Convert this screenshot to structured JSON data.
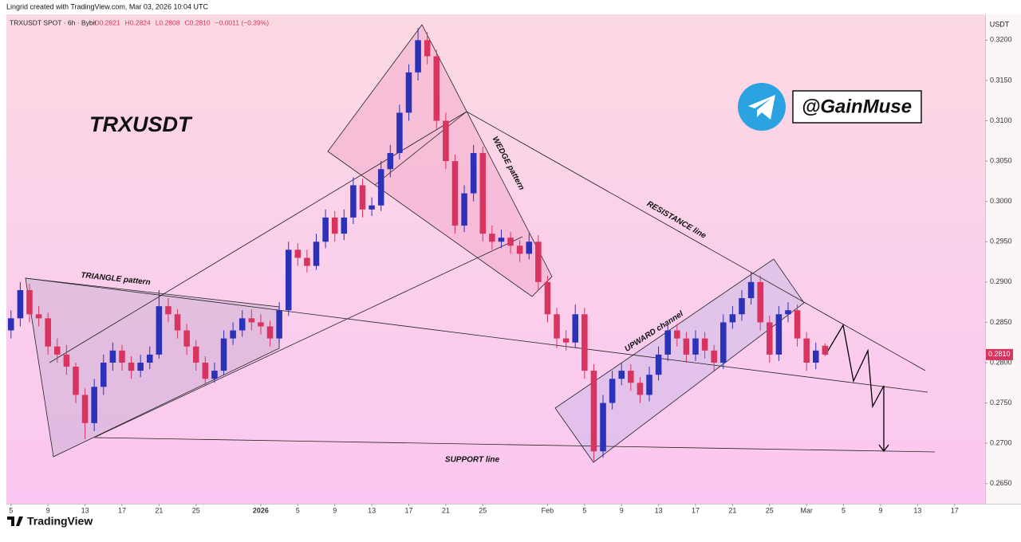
{
  "header": {
    "credit": "Lingrid created with TradingView.com, Mar 03, 2026 10:04 UTC",
    "footer_logo": "TradingView"
  },
  "chart_data": {
    "type": "candlestick",
    "title": "TRXUSDT",
    "symbol_info": "TRXUSDT SPOT · 6h · Bybit",
    "ohlc_text": [
      "O0.2821",
      "H0.2824",
      "L0.2808",
      "C0.2810",
      "−0.0011 (−0.39%)"
    ],
    "currency": "USDT",
    "handle": "@GainMuse",
    "annotations": [
      "TRIANGLE pattern",
      "WEDGE pattern",
      "RESISTANCE line",
      "UPWARD channel",
      "SUPPORT line"
    ],
    "up_color": "#2b32b8",
    "down_color": "#d8345f",
    "last_price": {
      "value": 0.281,
      "label": "0.2810"
    },
    "xlim": [
      -0.5,
      105.3
    ],
    "ylim": [
      0.2625,
      0.3232
    ],
    "yticks": [
      {
        "value": 0.265,
        "label": "0.2650"
      },
      {
        "value": 0.27,
        "label": "0.2700"
      },
      {
        "value": 0.275,
        "label": "0.2750"
      },
      {
        "value": 0.28,
        "label": "0.2800"
      },
      {
        "value": 0.285,
        "label": "0.2850"
      },
      {
        "value": 0.29,
        "label": "0.2900"
      },
      {
        "value": 0.295,
        "label": "0.2950"
      },
      {
        "value": 0.3,
        "label": "0.3000"
      },
      {
        "value": 0.305,
        "label": "0.3050"
      },
      {
        "value": 0.31,
        "label": "0.3100"
      },
      {
        "value": 0.315,
        "label": "0.3150"
      },
      {
        "value": 0.32,
        "label": "0.3200"
      }
    ],
    "xticks": [
      {
        "value": 0,
        "label": "5"
      },
      {
        "value": 4,
        "label": "9"
      },
      {
        "value": 8,
        "label": "13"
      },
      {
        "value": 12,
        "label": "17"
      },
      {
        "value": 16,
        "label": "21"
      },
      {
        "value": 20,
        "label": "25"
      },
      {
        "value": 27,
        "label": "2026"
      },
      {
        "value": 31,
        "label": "5"
      },
      {
        "value": 35,
        "label": "9"
      },
      {
        "value": 39,
        "label": "13"
      },
      {
        "value": 43,
        "label": "17"
      },
      {
        "value": 47,
        "label": "21"
      },
      {
        "value": 51,
        "label": "25"
      },
      {
        "value": 58,
        "label": "Feb"
      },
      {
        "value": 62,
        "label": "5"
      },
      {
        "value": 66,
        "label": "9"
      },
      {
        "value": 70,
        "label": "13"
      },
      {
        "value": 74,
        "label": "17"
      },
      {
        "value": 78,
        "label": "21"
      },
      {
        "value": 82,
        "label": "25"
      },
      {
        "value": 86,
        "label": "Mar"
      },
      {
        "value": 90,
        "label": "5"
      },
      {
        "value": 94,
        "label": "9"
      },
      {
        "value": 98,
        "label": "13"
      },
      {
        "value": 102,
        "label": "17"
      }
    ],
    "x": [
      0,
      1,
      2,
      3,
      4,
      5,
      6,
      7,
      8,
      9,
      10,
      11,
      12,
      13,
      14,
      15,
      16,
      17,
      18,
      19,
      20,
      21,
      22,
      23,
      24,
      25,
      26,
      27,
      28,
      29,
      30,
      31,
      32,
      33,
      34,
      35,
      36,
      37,
      38,
      39,
      40,
      41,
      42,
      43,
      44,
      45,
      46,
      47,
      48,
      49,
      50,
      51,
      52,
      53,
      54,
      55,
      56,
      57,
      58,
      59,
      60,
      61,
      62,
      63,
      64,
      65,
      66,
      67,
      68,
      69,
      70,
      71,
      72,
      73,
      74,
      75,
      76,
      77,
      78,
      79,
      80,
      81,
      82,
      83,
      84,
      85,
      86,
      87,
      88
    ],
    "candles": [
      [
        0.284,
        0.2865,
        0.283,
        0.2855
      ],
      [
        0.2855,
        0.29,
        0.2845,
        0.289
      ],
      [
        0.289,
        0.2898,
        0.285,
        0.286
      ],
      [
        0.286,
        0.287,
        0.2845,
        0.2855
      ],
      [
        0.2855,
        0.2862,
        0.281,
        0.282
      ],
      [
        0.282,
        0.283,
        0.28,
        0.281
      ],
      [
        0.281,
        0.2822,
        0.2785,
        0.2795
      ],
      [
        0.2795,
        0.28,
        0.275,
        0.276
      ],
      [
        0.276,
        0.2768,
        0.2705,
        0.2725
      ],
      [
        0.2725,
        0.278,
        0.2715,
        0.277
      ],
      [
        0.277,
        0.281,
        0.276,
        0.28
      ],
      [
        0.28,
        0.2825,
        0.279,
        0.2815
      ],
      [
        0.2815,
        0.2822,
        0.279,
        0.28
      ],
      [
        0.28,
        0.2808,
        0.278,
        0.279
      ],
      [
        0.279,
        0.281,
        0.2782,
        0.28
      ],
      [
        0.28,
        0.282,
        0.2792,
        0.281
      ],
      [
        0.281,
        0.289,
        0.2805,
        0.287
      ],
      [
        0.287,
        0.288,
        0.285,
        0.286
      ],
      [
        0.286,
        0.2866,
        0.283,
        0.284
      ],
      [
        0.284,
        0.2848,
        0.281,
        0.282
      ],
      [
        0.282,
        0.2828,
        0.279,
        0.28
      ],
      [
        0.28,
        0.2808,
        0.2772,
        0.278
      ],
      [
        0.278,
        0.28,
        0.2775,
        0.279
      ],
      [
        0.279,
        0.284,
        0.2785,
        0.283
      ],
      [
        0.283,
        0.285,
        0.2822,
        0.284
      ],
      [
        0.284,
        0.2865,
        0.2832,
        0.2855
      ],
      [
        0.2855,
        0.2866,
        0.284,
        0.285
      ],
      [
        0.285,
        0.286,
        0.2835,
        0.2845
      ],
      [
        0.2845,
        0.2852,
        0.282,
        0.283
      ],
      [
        0.283,
        0.2875,
        0.2825,
        0.2865
      ],
      [
        0.2865,
        0.295,
        0.2858,
        0.294
      ],
      [
        0.294,
        0.2948,
        0.292,
        0.293
      ],
      [
        0.293,
        0.294,
        0.2912,
        0.292
      ],
      [
        0.292,
        0.296,
        0.2915,
        0.295
      ],
      [
        0.295,
        0.299,
        0.2942,
        0.298
      ],
      [
        0.298,
        0.2988,
        0.295,
        0.296
      ],
      [
        0.296,
        0.299,
        0.2952,
        0.298
      ],
      [
        0.298,
        0.303,
        0.2972,
        0.302
      ],
      [
        0.302,
        0.3028,
        0.298,
        0.299
      ],
      [
        0.299,
        0.3005,
        0.2982,
        0.2995
      ],
      [
        0.2995,
        0.305,
        0.2988,
        0.304
      ],
      [
        0.304,
        0.307,
        0.303,
        0.306
      ],
      [
        0.306,
        0.312,
        0.3052,
        0.311
      ],
      [
        0.311,
        0.317,
        0.31,
        0.316
      ],
      [
        0.316,
        0.3215,
        0.315,
        0.32
      ],
      [
        0.32,
        0.321,
        0.317,
        0.318
      ],
      [
        0.318,
        0.3188,
        0.309,
        0.31
      ],
      [
        0.31,
        0.311,
        0.304,
        0.305
      ],
      [
        0.305,
        0.3058,
        0.296,
        0.297
      ],
      [
        0.297,
        0.302,
        0.2962,
        0.301
      ],
      [
        0.301,
        0.307,
        0.3,
        0.306
      ],
      [
        0.306,
        0.3068,
        0.295,
        0.296
      ],
      [
        0.296,
        0.297,
        0.294,
        0.295
      ],
      [
        0.295,
        0.2965,
        0.2942,
        0.2955
      ],
      [
        0.2955,
        0.2962,
        0.2935,
        0.2945
      ],
      [
        0.2945,
        0.2952,
        0.2925,
        0.2935
      ],
      [
        0.2935,
        0.296,
        0.2928,
        0.295
      ],
      [
        0.295,
        0.2958,
        0.289,
        0.29
      ],
      [
        0.29,
        0.2908,
        0.285,
        0.286
      ],
      [
        0.286,
        0.2868,
        0.2818,
        0.283
      ],
      [
        0.283,
        0.284,
        0.2815,
        0.2825
      ],
      [
        0.2825,
        0.2872,
        0.2818,
        0.286
      ],
      [
        0.286,
        0.2868,
        0.278,
        0.279
      ],
      [
        0.279,
        0.2798,
        0.2678,
        0.269
      ],
      [
        0.269,
        0.276,
        0.2682,
        0.275
      ],
      [
        0.275,
        0.279,
        0.2742,
        0.278
      ],
      [
        0.278,
        0.28,
        0.2772,
        0.279
      ],
      [
        0.279,
        0.2798,
        0.2765,
        0.2775
      ],
      [
        0.2775,
        0.2782,
        0.275,
        0.276
      ],
      [
        0.276,
        0.2795,
        0.2752,
        0.2785
      ],
      [
        0.2785,
        0.282,
        0.2778,
        0.281
      ],
      [
        0.281,
        0.285,
        0.2802,
        0.284
      ],
      [
        0.284,
        0.2848,
        0.282,
        0.283
      ],
      [
        0.283,
        0.2838,
        0.28,
        0.281
      ],
      [
        0.281,
        0.284,
        0.2802,
        0.283
      ],
      [
        0.283,
        0.2838,
        0.2805,
        0.2815
      ],
      [
        0.2815,
        0.2822,
        0.279,
        0.28
      ],
      [
        0.28,
        0.286,
        0.2792,
        0.285
      ],
      [
        0.285,
        0.287,
        0.2842,
        0.286
      ],
      [
        0.286,
        0.289,
        0.2852,
        0.288
      ],
      [
        0.288,
        0.2912,
        0.2872,
        0.29
      ],
      [
        0.29,
        0.2908,
        0.284,
        0.285
      ],
      [
        0.285,
        0.2858,
        0.28,
        0.281
      ],
      [
        0.281,
        0.287,
        0.2802,
        0.286
      ],
      [
        0.286,
        0.2875,
        0.285,
        0.2865
      ],
      [
        0.2865,
        0.2872,
        0.282,
        0.283
      ],
      [
        0.283,
        0.2838,
        0.279,
        0.28
      ],
      [
        0.28,
        0.2825,
        0.2792,
        0.2815
      ],
      [
        0.2821,
        0.2824,
        0.2808,
        0.281
      ]
    ]
  }
}
